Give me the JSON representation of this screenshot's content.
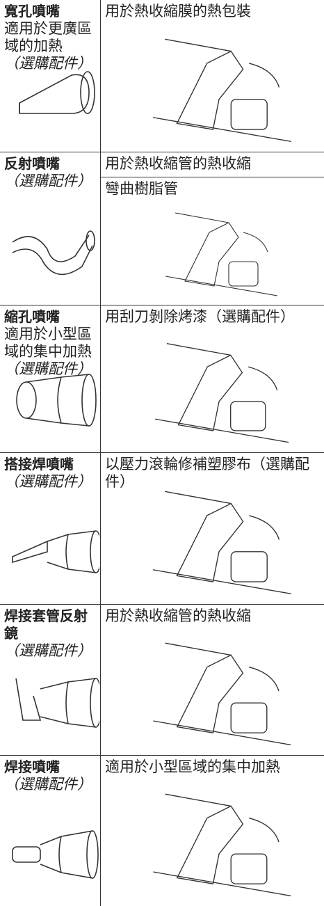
{
  "rows": [
    {
      "name": "寬孔噴嘴",
      "description": "適用於更廣區域的加熱",
      "note": "（選購配件）",
      "uses": [
        "用於熱收縮膜的熱包裝"
      ]
    },
    {
      "name": "反射噴嘴",
      "note": "（選購配件）",
      "uses": [
        "用於熱收縮管的熱收縮",
        "彎曲樹脂管"
      ]
    },
    {
      "name": "縮孔噴嘴",
      "description": "適用於小型區域的集中加熱",
      "note": "（選購配件）",
      "uses": [
        "用刮刀剝除烤漆（選購配件）"
      ]
    },
    {
      "name": "搭接焊噴嘴",
      "note": "（選購配件）",
      "uses": [
        "以壓力滾輪修補塑膠布（選購配件）"
      ]
    },
    {
      "name": "焊接套管反射鏡",
      "note": "（選購配件）",
      "uses": [
        "用於熱收縮管的熱收縮"
      ]
    },
    {
      "name": "焊接噴嘴",
      "note": "（選購配件）",
      "uses": [
        "適用於小型區域的集中加熱"
      ]
    }
  ]
}
